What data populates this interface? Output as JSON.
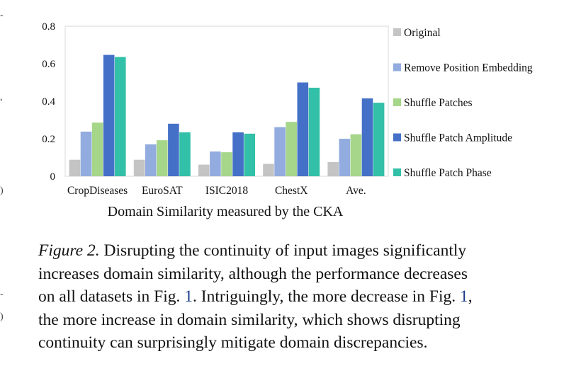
{
  "chart_data": {
    "type": "bar",
    "title": "",
    "xlabel": "Domain Similarity measured by the CKA",
    "ylabel": "",
    "ylim": [
      0,
      0.8
    ],
    "yticks": [
      "0",
      "0.2",
      "0.4",
      "0.6",
      "0.8"
    ],
    "categories": [
      "CropDiseases",
      "EuroSAT",
      "ISIC2018",
      "ChestX",
      "Ave."
    ],
    "series": [
      {
        "name": "Original",
        "color": "#c4c4c4",
        "values": [
          0.088,
          0.088,
          0.062,
          0.066,
          0.076
        ]
      },
      {
        "name": "Remove Position Embedding",
        "color": "#92acdf",
        "values": [
          0.238,
          0.17,
          0.132,
          0.262,
          0.2
        ]
      },
      {
        "name": "Shuffle Patches",
        "color": "#a6d68a",
        "values": [
          0.286,
          0.192,
          0.128,
          0.29,
          0.224
        ]
      },
      {
        "name": "Shuffle Patch Amplitude",
        "color": "#4470c8",
        "values": [
          0.647,
          0.28,
          0.234,
          0.5,
          0.415
        ]
      },
      {
        "name": "Shuffle Patch Phase",
        "color": "#33c0a8",
        "values": [
          0.636,
          0.234,
          0.227,
          0.472,
          0.392
        ]
      }
    ],
    "grid": false,
    "legend": "right"
  },
  "caption": {
    "label": "Figure 2.",
    "lines": [
      " Disrupting the continuity of input images significantly",
      "increases domain similarity, although the performance decreases",
      "on all datasets in Fig. "
    ],
    "ref1": "1",
    "mid": ". Intriguingly, the more decrease in Fig. ",
    "ref2": "1",
    "tail1": ",",
    "line5": "the more increase in domain similarity, which shows disrupting",
    "line6": "continuity can surprisingly mitigate domain discrepancies."
  }
}
